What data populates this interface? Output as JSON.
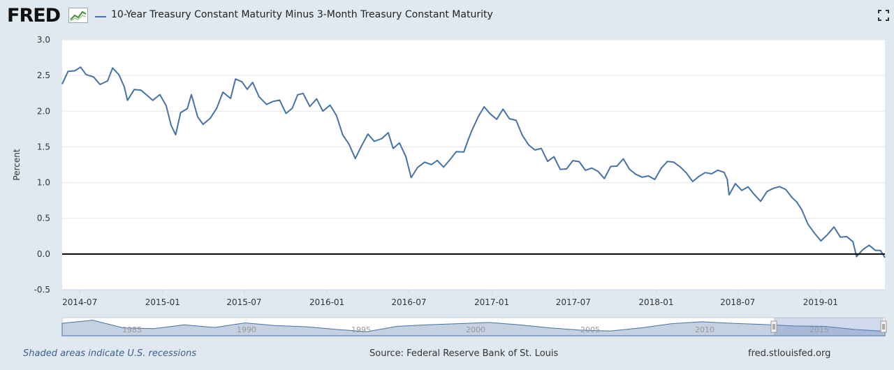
{
  "header": {
    "logo_text": "FRED",
    "series_title": "10-Year Treasury Constant Maturity Minus 3-Month Treasury Constant Maturity"
  },
  "footer": {
    "recession_note": "Shaded areas indicate U.S. recessions",
    "source": "Source: Federal Reserve Bank of St. Louis",
    "site": "fred.stlouisfed.org"
  },
  "colors": {
    "series": "#4572a7",
    "background": "#e1e9f0",
    "plot_background": "#ffffff",
    "zero_line": "#000000",
    "navigator_fill": "#9fb3cc"
  },
  "icons": {
    "logo_mark": "line-chart-icon",
    "fullscreen": "fullscreen-icon"
  },
  "chart_data": {
    "type": "line",
    "title": "10-Year Treasury Constant Maturity Minus 3-Month Treasury Constant Maturity",
    "ylabel": "Percent",
    "xlabel": "",
    "ylim": [
      -0.5,
      3.0
    ],
    "xlim": [
      "2014-05-23",
      "2019-05-24"
    ],
    "grid": true,
    "y_ticks": [
      "3.0",
      "2.5",
      "2.0",
      "1.5",
      "1.0",
      "0.5",
      "0.0",
      "-0.5"
    ],
    "x_ticks": [
      "2014-07",
      "2015-01",
      "2015-07",
      "2016-01",
      "2016-07",
      "2017-01",
      "2017-07",
      "2018-01",
      "2018-07",
      "2019-01"
    ],
    "zero_line": 0.0,
    "series": [
      {
        "name": "10-Year Treasury Constant Maturity Minus 3-Month Treasury Constant Maturity",
        "points": [
          [
            "2014-05-23",
            2.38
          ],
          [
            "2014-06-05",
            2.55
          ],
          [
            "2014-06-20",
            2.6
          ],
          [
            "2014-07-03",
            2.62
          ],
          [
            "2014-07-15",
            2.52
          ],
          [
            "2014-08-01",
            2.5
          ],
          [
            "2014-08-15",
            2.35
          ],
          [
            "2014-09-01",
            2.42
          ],
          [
            "2014-09-12",
            2.6
          ],
          [
            "2014-09-26",
            2.48
          ],
          [
            "2014-10-08",
            2.35
          ],
          [
            "2014-10-15",
            2.15
          ],
          [
            "2014-10-30",
            2.3
          ],
          [
            "2014-11-14",
            2.33
          ],
          [
            "2014-11-28",
            2.22
          ],
          [
            "2014-12-10",
            2.16
          ],
          [
            "2014-12-26",
            2.25
          ],
          [
            "2015-01-09",
            2.05
          ],
          [
            "2015-01-20",
            1.8
          ],
          [
            "2015-01-30",
            1.66
          ],
          [
            "2015-02-10",
            1.95
          ],
          [
            "2015-02-25",
            2.05
          ],
          [
            "2015-03-06",
            2.23
          ],
          [
            "2015-03-20",
            1.92
          ],
          [
            "2015-04-01",
            1.85
          ],
          [
            "2015-04-17",
            1.9
          ],
          [
            "2015-05-01",
            2.05
          ],
          [
            "2015-05-15",
            2.28
          ],
          [
            "2015-06-01",
            2.15
          ],
          [
            "2015-06-12",
            2.45
          ],
          [
            "2015-06-26",
            2.4
          ],
          [
            "2015-07-08",
            2.28
          ],
          [
            "2015-07-20",
            2.42
          ],
          [
            "2015-08-03",
            2.2
          ],
          [
            "2015-08-20",
            2.1
          ],
          [
            "2015-09-03",
            2.17
          ],
          [
            "2015-09-18",
            2.15
          ],
          [
            "2015-10-02",
            1.98
          ],
          [
            "2015-10-16",
            2.05
          ],
          [
            "2015-10-28",
            2.2
          ],
          [
            "2015-11-09",
            2.25
          ],
          [
            "2015-11-24",
            2.05
          ],
          [
            "2015-12-09",
            2.15
          ],
          [
            "2015-12-23",
            2.02
          ],
          [
            "2016-01-08",
            2.08
          ],
          [
            "2016-01-22",
            1.95
          ],
          [
            "2016-02-05",
            1.7
          ],
          [
            "2016-02-19",
            1.53
          ],
          [
            "2016-03-04",
            1.35
          ],
          [
            "2016-03-18",
            1.52
          ],
          [
            "2016-04-01",
            1.65
          ],
          [
            "2016-04-15",
            1.58
          ],
          [
            "2016-05-02",
            1.6
          ],
          [
            "2016-05-16",
            1.68
          ],
          [
            "2016-05-27",
            1.5
          ],
          [
            "2016-06-10",
            1.55
          ],
          [
            "2016-06-24",
            1.38
          ],
          [
            "2016-07-06",
            1.1
          ],
          [
            "2016-07-20",
            1.2
          ],
          [
            "2016-08-05",
            1.3
          ],
          [
            "2016-08-20",
            1.25
          ],
          [
            "2016-09-02",
            1.28
          ],
          [
            "2016-09-16",
            1.22
          ],
          [
            "2016-09-30",
            1.3
          ],
          [
            "2016-10-14",
            1.42
          ],
          [
            "2016-10-31",
            1.45
          ],
          [
            "2016-11-10",
            1.6
          ],
          [
            "2016-11-18",
            1.75
          ],
          [
            "2016-12-02",
            1.95
          ],
          [
            "2016-12-15",
            2.05
          ],
          [
            "2016-12-28",
            1.98
          ],
          [
            "2017-01-12",
            1.88
          ],
          [
            "2017-01-26",
            2.0
          ],
          [
            "2017-02-09",
            1.9
          ],
          [
            "2017-02-24",
            1.85
          ],
          [
            "2017-03-10",
            1.65
          ],
          [
            "2017-03-24",
            1.55
          ],
          [
            "2017-04-07",
            1.45
          ],
          [
            "2017-04-21",
            1.5
          ],
          [
            "2017-05-05",
            1.32
          ],
          [
            "2017-05-19",
            1.35
          ],
          [
            "2017-06-02",
            1.2
          ],
          [
            "2017-06-16",
            1.18
          ],
          [
            "2017-06-30",
            1.28
          ],
          [
            "2017-07-14",
            1.3
          ],
          [
            "2017-07-28",
            1.15
          ],
          [
            "2017-08-11",
            1.2
          ],
          [
            "2017-08-25",
            1.18
          ],
          [
            "2017-09-08",
            1.05
          ],
          [
            "2017-09-22",
            1.25
          ],
          [
            "2017-10-06",
            1.25
          ],
          [
            "2017-10-20",
            1.32
          ],
          [
            "2017-11-03",
            1.2
          ],
          [
            "2017-11-17",
            1.1
          ],
          [
            "2017-12-01",
            1.05
          ],
          [
            "2017-12-15",
            1.1
          ],
          [
            "2017-12-29",
            1.02
          ],
          [
            "2018-01-12",
            1.2
          ],
          [
            "2018-01-26",
            1.32
          ],
          [
            "2018-02-09",
            1.28
          ],
          [
            "2018-02-23",
            1.25
          ],
          [
            "2018-03-09",
            1.15
          ],
          [
            "2018-03-23",
            1.0
          ],
          [
            "2018-04-06",
            1.1
          ],
          [
            "2018-04-20",
            1.12
          ],
          [
            "2018-05-04",
            1.1
          ],
          [
            "2018-05-18",
            1.18
          ],
          [
            "2018-06-01",
            1.12
          ],
          [
            "2018-06-08",
            1.05
          ],
          [
            "2018-06-12",
            0.85
          ],
          [
            "2018-06-26",
            0.98
          ],
          [
            "2018-07-10",
            0.92
          ],
          [
            "2018-07-24",
            0.95
          ],
          [
            "2018-08-07",
            0.82
          ],
          [
            "2018-08-21",
            0.75
          ],
          [
            "2018-09-04",
            0.85
          ],
          [
            "2018-09-18",
            0.9
          ],
          [
            "2018-10-02",
            0.95
          ],
          [
            "2018-10-16",
            0.88
          ],
          [
            "2018-10-30",
            0.8
          ],
          [
            "2018-11-09",
            0.75
          ],
          [
            "2018-11-20",
            0.62
          ],
          [
            "2018-12-04",
            0.45
          ],
          [
            "2018-12-18",
            0.3
          ],
          [
            "2019-01-02",
            0.17
          ],
          [
            "2019-01-16",
            0.28
          ],
          [
            "2019-01-31",
            0.35
          ],
          [
            "2019-02-14",
            0.22
          ],
          [
            "2019-02-28",
            0.25
          ],
          [
            "2019-03-14",
            0.15
          ],
          [
            "2019-03-22",
            -0.02
          ],
          [
            "2019-04-05",
            0.08
          ],
          [
            "2019-04-19",
            0.12
          ],
          [
            "2019-05-03",
            0.08
          ],
          [
            "2019-05-14",
            0.05
          ],
          [
            "2019-05-24",
            -0.05
          ]
        ]
      }
    ],
    "navigator": {
      "x_ticks": [
        "1985",
        "1990",
        "1995",
        "2000",
        "2005",
        "2010",
        "2015"
      ],
      "values": [
        2.4,
        3.2,
        1.2,
        1.0,
        2.0,
        1.3,
        2.5,
        1.8,
        1.5,
        0.8,
        0.2,
        1.6,
        2.0,
        2.3,
        2.6,
        2.0,
        1.2,
        0.6,
        0.4,
        1.2,
        2.3,
        2.8,
        2.4,
        2.1,
        1.7,
        1.6,
        0.8,
        0.3
      ]
    }
  }
}
